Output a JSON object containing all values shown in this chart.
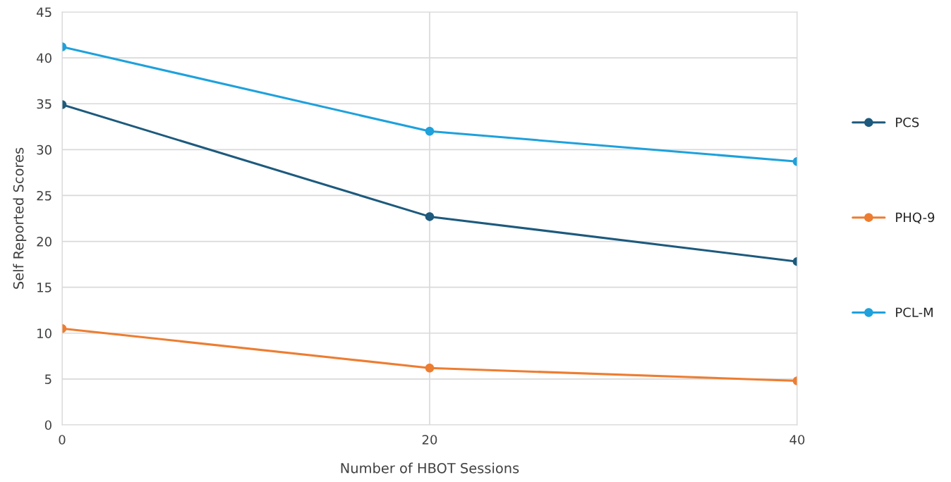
{
  "chart_data": {
    "type": "line",
    "xlabel": "Number of HBOT Sessions",
    "ylabel": "Self Reported Scores",
    "x": [
      0,
      20,
      40
    ],
    "series": [
      {
        "name": "PCS",
        "color": "#1d5a7d",
        "values": [
          34.9,
          22.7,
          17.8
        ]
      },
      {
        "name": "PHQ-9",
        "color": "#ed7d31",
        "values": [
          10.5,
          6.2,
          4.8
        ]
      },
      {
        "name": "PCL-M",
        "color": "#1ea1dc",
        "values": [
          41.2,
          32.0,
          28.7
        ]
      }
    ],
    "xlim": [
      0,
      40
    ],
    "xticks": [
      0,
      20,
      40
    ],
    "ylim": [
      0,
      45
    ],
    "yticks": [
      0,
      5,
      10,
      15,
      20,
      25,
      30,
      35,
      40,
      45
    ],
    "grid": true,
    "legend": "right",
    "marker": "circle",
    "line_style": "solid"
  }
}
